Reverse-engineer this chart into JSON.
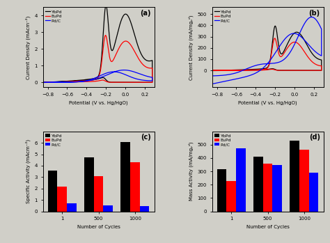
{
  "panel_a": {
    "ylabel": "Current Density (mAcm⁻²)",
    "xlabel": "Potential (V vs. Hg/HgO)",
    "xlim": [
      -0.85,
      0.3
    ],
    "ylim": [
      -0.3,
      4.5
    ],
    "yticks": [
      0,
      1,
      2,
      3,
      4
    ],
    "label": "(a)"
  },
  "panel_b": {
    "ylabel": "Current Density (mA/mgₚᵈ)",
    "xlabel": "Potential (V vs. Hg/HgO)",
    "xlim": [
      -0.85,
      0.3
    ],
    "ylim": [
      -150,
      560
    ],
    "yticks": [
      0,
      100,
      200,
      300,
      400,
      500
    ],
    "label": "(b)"
  },
  "panel_c": {
    "ylabel": "Specific Activity (mAcm⁻²)",
    "xlabel": "Number of Cycles",
    "ylim": [
      0,
      7
    ],
    "yticks": [
      0,
      1,
      2,
      3,
      4,
      5,
      6
    ],
    "categories": [
      "1",
      "500",
      "1000"
    ],
    "YbPd": [
      3.6,
      4.75,
      6.05
    ],
    "EuPd": [
      2.15,
      3.1,
      4.3
    ],
    "PdC": [
      0.7,
      0.55,
      0.48
    ],
    "label": "(c)"
  },
  "panel_d": {
    "ylabel": "Mass Activity (mA/mgₚᵈ)",
    "xlabel": "Number of Cycles",
    "ylim": [
      0,
      600
    ],
    "yticks": [
      0,
      100,
      200,
      300,
      400,
      500
    ],
    "categories": [
      "1",
      "500",
      "1000"
    ],
    "YbPd": [
      315,
      410,
      530
    ],
    "EuPd": [
      230,
      360,
      460
    ],
    "PdC": [
      475,
      350,
      290
    ],
    "label": "(d)"
  },
  "colors": {
    "YbPd": "black",
    "EuPd": "red",
    "PdC": "blue"
  },
  "legend_labels": [
    "YbPd",
    "EuPd",
    "Pd/C"
  ],
  "bg_color": "#d0cfc8"
}
